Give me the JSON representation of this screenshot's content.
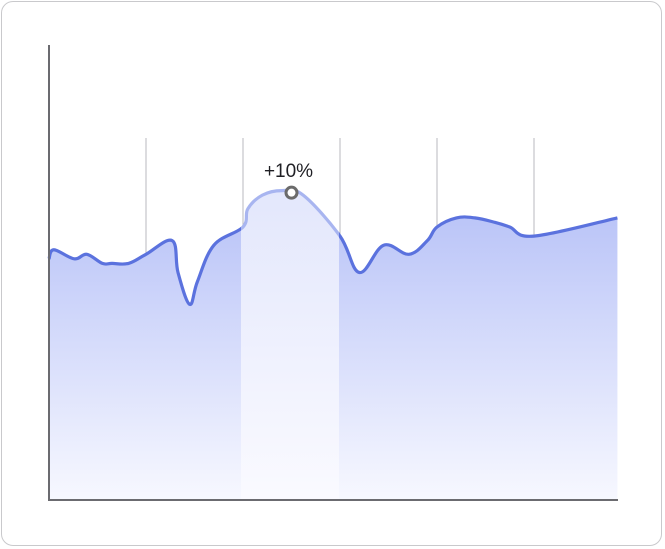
{
  "chart_data": {
    "type": "area",
    "title": "",
    "xlabel": "",
    "ylabel": "",
    "grid": "vertical",
    "xlim": [
      0,
      6
    ],
    "ylim": [
      0,
      100
    ],
    "x": [
      0,
      0.05,
      0.26,
      0.39,
      0.55,
      0.65,
      0.82,
      1.0,
      1.27,
      1.33,
      1.45,
      1.53,
      1.7,
      2.0,
      2.05,
      2.2,
      2.4,
      2.62,
      3.0,
      3.2,
      3.45,
      3.71,
      3.9,
      4.0,
      4.2,
      4.39,
      4.6,
      4.75,
      5.0,
      5.86
    ],
    "values": [
      53,
      55,
      53,
      54,
      52,
      52,
      52,
      54,
      57,
      50,
      43,
      48,
      56,
      60,
      64,
      67,
      68,
      67,
      58,
      50,
      56,
      54,
      57,
      60,
      62,
      62,
      61,
      60,
      58,
      62
    ],
    "series": [
      {
        "values": [
          53,
          55,
          53,
          54,
          52,
          52,
          52,
          54,
          57,
          50,
          43,
          48,
          56,
          60,
          64,
          67,
          68,
          67,
          58,
          50,
          56,
          54,
          57,
          60,
          62,
          62,
          61,
          60,
          58,
          62
        ]
      }
    ],
    "highlight": {
      "x_start": 2.0,
      "x_end": 3.0
    },
    "annotations": [
      {
        "text": "+10%",
        "x": 2.5,
        "marker": "circle"
      }
    ],
    "colors": {
      "line": "#5b72de",
      "line_highlight": "#a8b5f0",
      "fill_top": "#b5c0f7",
      "fill_bottom": "#f7f8ff",
      "axis": "#6b6b70",
      "grid": "#b9b9bf",
      "marker": "#6b6b6b"
    }
  }
}
